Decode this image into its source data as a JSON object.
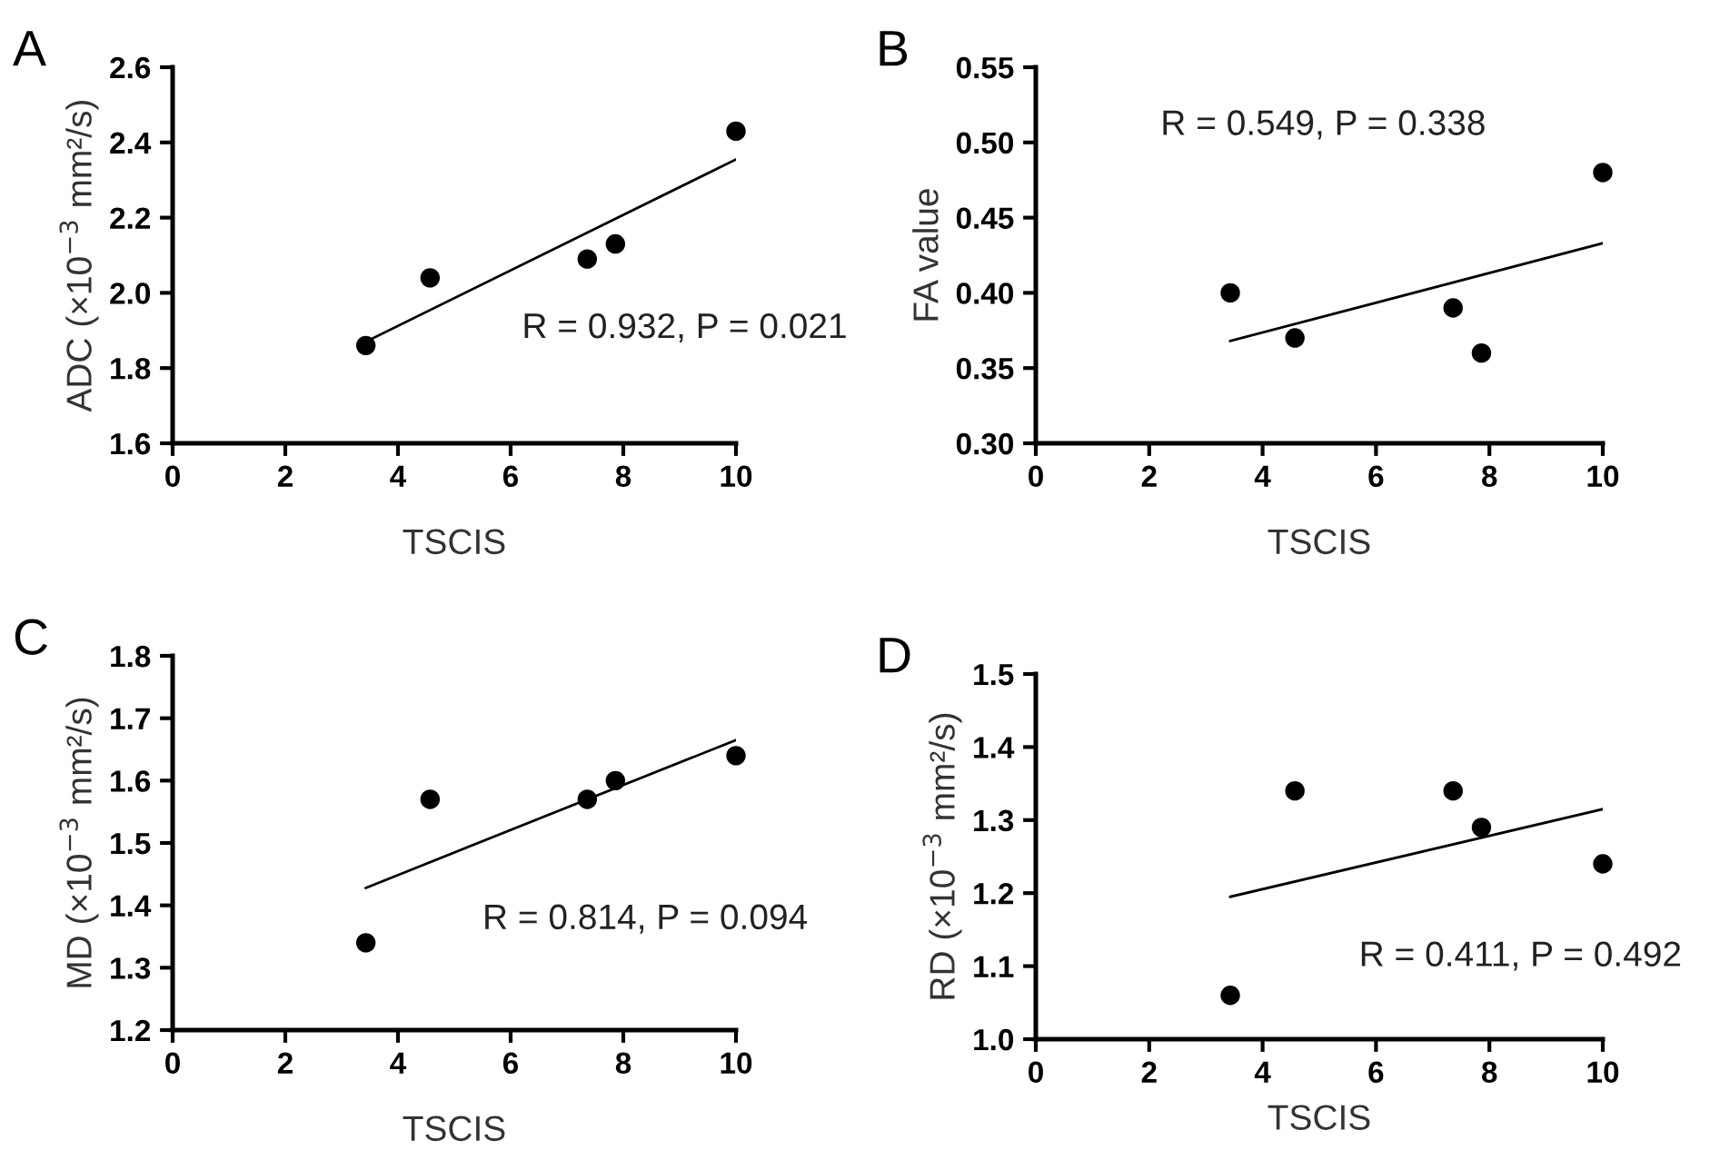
{
  "chart_data": [
    {
      "type": "scatter",
      "title": "A",
      "xlabel": "TSCIS",
      "ylabel": "ADC (×10$^{−3}$ mm²/s)",
      "xlim": [
        0,
        10
      ],
      "xticks": [
        0,
        2,
        4,
        6,
        8,
        10
      ],
      "ylim": [
        1.6,
        2.6
      ],
      "yticks": [
        {
          "value": 1.6,
          "label": "1.6"
        },
        {
          "value": 1.8,
          "label": "1.8"
        },
        {
          "value": 2.0,
          "label": "2.0"
        },
        {
          "value": 2.2,
          "label": "2.2"
        },
        {
          "value": 2.4,
          "label": "2.4"
        },
        {
          "value": 2.6,
          "label": "2.6"
        }
      ],
      "marker": "circle",
      "annotations": [
        "R = 0.932, P = 0.021"
      ],
      "series": [
        {
          "color": "#000000",
          "x": [
            3.43,
            4.57,
            7.36,
            7.86,
            10.0
          ],
          "values": [
            1.86,
            2.04,
            2.09,
            2.13,
            2.43
          ]
        },
        {
          "type": "line",
          "marker": "none",
          "color": "#000000",
          "x": [
            3.43,
            10.0
          ],
          "values": [
            1.87,
            2.355
          ]
        }
      ]
    },
    {
      "type": "scatter",
      "title": "B",
      "xlabel": "TSCIS",
      "ylabel": "FA value",
      "xlim": [
        0,
        10
      ],
      "xticks": [
        0,
        2,
        4,
        6,
        8,
        10
      ],
      "ylim": [
        0.3,
        0.55
      ],
      "yticks": [
        {
          "value": 0.3,
          "label": "0.30"
        },
        {
          "value": 0.35,
          "label": "0.35"
        },
        {
          "value": 0.4,
          "label": "0.40"
        },
        {
          "value": 0.45,
          "label": "0.45"
        },
        {
          "value": 0.5,
          "label": "0.50"
        },
        {
          "value": 0.55,
          "label": "0.55"
        }
      ],
      "marker": "circle",
      "annotations": [
        "R = 0.549, P = 0.338"
      ],
      "series": [
        {
          "color": "#000000",
          "x": [
            3.43,
            4.57,
            7.36,
            7.86,
            10.0
          ],
          "values": [
            0.4,
            0.37,
            0.39,
            0.36,
            0.48
          ]
        },
        {
          "type": "line",
          "marker": "none",
          "color": "#000000",
          "x": [
            3.43,
            10.0
          ],
          "values": [
            0.368,
            0.433
          ]
        }
      ]
    },
    {
      "type": "scatter",
      "title": "C",
      "xlabel": "TSCIS",
      "ylabel": "MD (×10$^{−3}$ mm²/s)",
      "xlim": [
        0,
        10
      ],
      "xticks": [
        0,
        2,
        4,
        6,
        8,
        10
      ],
      "ylim": [
        1.2,
        1.8
      ],
      "yticks": [
        1.2,
        1.3,
        1.4,
        1.5,
        1.6,
        1.7,
        1.8
      ],
      "marker": "circle",
      "annotations": [
        "R = 0.814, P = 0.094"
      ],
      "series": [
        {
          "color": "#000000",
          "x": [
            3.43,
            4.57,
            7.36,
            7.86,
            10.0
          ],
          "values": [
            1.34,
            1.57,
            1.57,
            1.6,
            1.64
          ]
        },
        {
          "type": "line",
          "marker": "none",
          "color": "#000000",
          "x": [
            3.43,
            10.0
          ],
          "values": [
            1.428,
            1.665
          ]
        }
      ]
    },
    {
      "type": "scatter",
      "title": "D",
      "xlabel": "TSCIS",
      "ylabel": "RD (×10$^{−3}$ mm²/s)",
      "xlim": [
        0,
        10
      ],
      "xticks": [
        0,
        2,
        4,
        6,
        8,
        10
      ],
      "ylim": [
        1.0,
        1.5
      ],
      "yticks": [
        {
          "value": 1.0,
          "label": "1.0"
        },
        1.1,
        1.2,
        1.3,
        1.4,
        1.5
      ],
      "marker": "circle",
      "annotations": [
        "R = 0.411, P = 0.492"
      ],
      "series": [
        {
          "color": "#000000",
          "x": [
            3.43,
            4.57,
            7.36,
            7.86,
            10.0
          ],
          "values": [
            1.06,
            1.34,
            1.34,
            1.29,
            1.24
          ]
        },
        {
          "type": "line",
          "marker": "none",
          "color": "#000000",
          "x": [
            3.43,
            10.0
          ],
          "values": [
            1.195,
            1.315
          ]
        }
      ]
    }
  ]
}
